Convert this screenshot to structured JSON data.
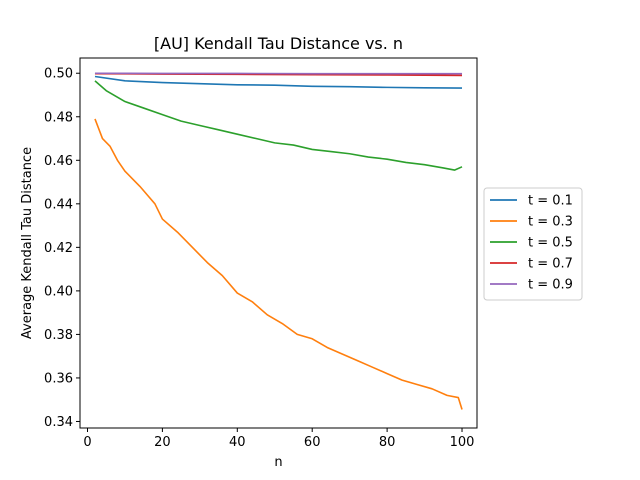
{
  "chart_data": {
    "type": "line",
    "title": "[AU] Kendall Tau Distance vs. n",
    "xlabel": "n",
    "ylabel": "Average Kendall Tau Distance",
    "xlim": [
      -2,
      104
    ],
    "ylim": [
      0.337,
      0.507
    ],
    "xticks": [
      0,
      20,
      40,
      60,
      80,
      100
    ],
    "yticks": [
      0.34,
      0.36,
      0.38,
      0.4,
      0.42,
      0.44,
      0.46,
      0.48,
      0.5
    ],
    "ytick_labels": [
      "0.34",
      "0.36",
      "0.38",
      "0.40",
      "0.42",
      "0.44",
      "0.46",
      "0.48",
      "0.50"
    ],
    "legend_position": "center-right-outside",
    "series": [
      {
        "name": "t = 0.1",
        "color": "#1f77b4",
        "points": [
          [
            2,
            0.4985
          ],
          [
            10,
            0.4965
          ],
          [
            20,
            0.4957
          ],
          [
            30,
            0.4952
          ],
          [
            40,
            0.4947
          ],
          [
            50,
            0.4945
          ],
          [
            60,
            0.494
          ],
          [
            70,
            0.4938
          ],
          [
            80,
            0.4935
          ],
          [
            90,
            0.4933
          ],
          [
            100,
            0.4932
          ]
        ]
      },
      {
        "name": "t = 0.3",
        "color": "#ff7f0e",
        "points": [
          [
            2,
            0.479
          ],
          [
            4,
            0.47
          ],
          [
            6,
            0.4665
          ],
          [
            8,
            0.46
          ],
          [
            10,
            0.455
          ],
          [
            12,
            0.4515
          ],
          [
            14,
            0.448
          ],
          [
            16,
            0.444
          ],
          [
            18,
            0.44
          ],
          [
            20,
            0.433
          ],
          [
            24,
            0.427
          ],
          [
            28,
            0.42
          ],
          [
            32,
            0.413
          ],
          [
            36,
            0.407
          ],
          [
            40,
            0.399
          ],
          [
            44,
            0.395
          ],
          [
            48,
            0.389
          ],
          [
            52,
            0.385
          ],
          [
            56,
            0.38
          ],
          [
            60,
            0.378
          ],
          [
            64,
            0.374
          ],
          [
            68,
            0.371
          ],
          [
            72,
            0.368
          ],
          [
            76,
            0.365
          ],
          [
            80,
            0.362
          ],
          [
            84,
            0.359
          ],
          [
            88,
            0.357
          ],
          [
            92,
            0.355
          ],
          [
            96,
            0.352
          ],
          [
            99,
            0.351
          ],
          [
            100,
            0.3455
          ]
        ]
      },
      {
        "name": "t = 0.5",
        "color": "#2ca02c",
        "points": [
          [
            2,
            0.4965
          ],
          [
            5,
            0.492
          ],
          [
            10,
            0.487
          ],
          [
            15,
            0.484
          ],
          [
            20,
            0.481
          ],
          [
            25,
            0.478
          ],
          [
            30,
            0.476
          ],
          [
            35,
            0.474
          ],
          [
            40,
            0.472
          ],
          [
            45,
            0.47
          ],
          [
            50,
            0.468
          ],
          [
            55,
            0.467
          ],
          [
            60,
            0.465
          ],
          [
            65,
            0.464
          ],
          [
            70,
            0.463
          ],
          [
            75,
            0.4615
          ],
          [
            80,
            0.4605
          ],
          [
            85,
            0.459
          ],
          [
            90,
            0.458
          ],
          [
            95,
            0.4565
          ],
          [
            98,
            0.4555
          ],
          [
            100,
            0.457
          ]
        ]
      },
      {
        "name": "t = 0.7",
        "color": "#d62728",
        "points": [
          [
            2,
            0.4998
          ],
          [
            20,
            0.4996
          ],
          [
            40,
            0.4995
          ],
          [
            60,
            0.4993
          ],
          [
            80,
            0.4992
          ],
          [
            100,
            0.499
          ]
        ]
      },
      {
        "name": "t = 0.9",
        "color": "#9467bd",
        "points": [
          [
            2,
            0.5
          ],
          [
            20,
            0.4999
          ],
          [
            40,
            0.4999
          ],
          [
            60,
            0.4998
          ],
          [
            80,
            0.4998
          ],
          [
            100,
            0.4998
          ]
        ]
      }
    ]
  }
}
